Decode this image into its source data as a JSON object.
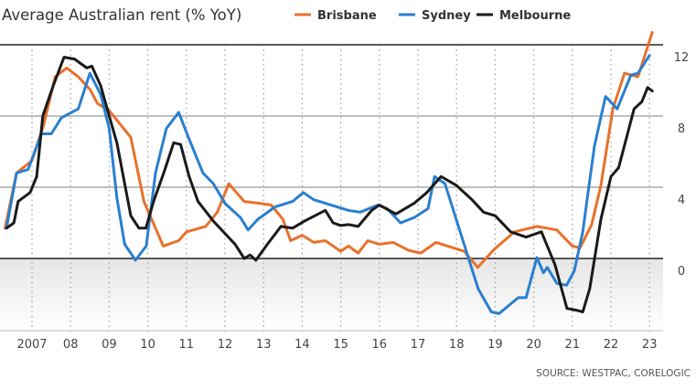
{
  "chart_data": {
    "type": "line",
    "title": "Average Australian rent (% YoY)",
    "source": "SOURCE: WESTPAC, CORELOGIC",
    "xlabel": "",
    "ylabel": "",
    "ylim": [
      -4,
      12
    ],
    "xlim": [
      2006.3,
      2023.3
    ],
    "yticks": [
      12,
      8,
      4,
      0
    ],
    "ytick_labels": [
      "12",
      "8",
      "4",
      "0"
    ],
    "xticks": [
      2007,
      2008,
      2009,
      2010,
      2011,
      2012,
      2013,
      2014,
      2015,
      2016,
      2017,
      2018,
      2019,
      2020,
      2021,
      2022,
      2023
    ],
    "xtick_labels": [
      "2007",
      "08",
      "09",
      "10",
      "11",
      "12",
      "13",
      "14",
      "15",
      "16",
      "17",
      "18",
      "19",
      "20",
      "21",
      "22",
      "23"
    ],
    "grid": "horizontal solid, vertical dotted",
    "shaded_below_zero": true,
    "legend_position": "top",
    "series": [
      {
        "name": "Brisbane",
        "color": "#e8712b",
        "x": [
          2006.3,
          2006.6,
          2007.0,
          2007.3,
          2007.6,
          2007.9,
          2008.2,
          2008.5,
          2008.7,
          2009.0,
          2009.3,
          2009.56,
          2009.9,
          2010.4,
          2010.8,
          2011.0,
          2011.5,
          2011.8,
          2012.1,
          2012.5,
          2012.9,
          2013.2,
          2013.5,
          2013.7,
          2014.0,
          2014.3,
          2014.6,
          2015.0,
          2015.2,
          2015.45,
          2015.7,
          2016.0,
          2016.36,
          2016.76,
          2017.07,
          2017.47,
          2018.2,
          2018.55,
          2018.97,
          2019.5,
          2020.08,
          2020.6,
          2021.0,
          2021.2,
          2021.5,
          2021.74,
          2022.05,
          2022.35,
          2022.7,
          2023.07
        ],
        "values": [
          1.7,
          4.8,
          5.5,
          7.5,
          10.2,
          10.7,
          10.2,
          9.5,
          8.7,
          8.3,
          7.5,
          6.8,
          3.2,
          0.7,
          1.0,
          1.5,
          1.8,
          2.6,
          4.2,
          3.2,
          3.1,
          3.0,
          2.2,
          1.0,
          1.3,
          0.9,
          1.0,
          0.4,
          0.7,
          0.3,
          1.0,
          0.8,
          0.9,
          0.45,
          0.3,
          0.9,
          0.4,
          -0.5,
          0.5,
          1.5,
          1.8,
          1.6,
          0.7,
          0.6,
          1.9,
          4.1,
          8.4,
          10.4,
          10.2,
          12.7
        ]
      },
      {
        "name": "Sydney",
        "color": "#2a7fcf",
        "x": [
          2006.34,
          2006.6,
          2006.9,
          2007.24,
          2007.5,
          2007.76,
          2008.2,
          2008.5,
          2008.78,
          2009.0,
          2009.2,
          2009.4,
          2009.68,
          2009.96,
          2010.2,
          2010.48,
          2010.8,
          2011.07,
          2011.43,
          2011.7,
          2012.0,
          2012.4,
          2012.6,
          2012.85,
          2013.3,
          2013.75,
          2014.03,
          2014.3,
          2015.2,
          2015.5,
          2015.96,
          2016.2,
          2016.55,
          2016.9,
          2017.26,
          2017.43,
          2017.7,
          2018.56,
          2018.9,
          2019.1,
          2019.6,
          2019.8,
          2020.08,
          2020.25,
          2020.35,
          2020.6,
          2020.85,
          2021.05,
          2021.27,
          2021.4,
          2021.57,
          2021.86,
          2022.16,
          2022.52,
          2022.7,
          2023.0
        ],
        "values": [
          1.7,
          4.8,
          5.0,
          7.0,
          7.0,
          7.9,
          8.4,
          10.4,
          9.2,
          7.3,
          3.4,
          0.8,
          -0.1,
          0.7,
          4.8,
          7.3,
          8.2,
          6.7,
          4.8,
          4.2,
          3.1,
          2.3,
          1.6,
          2.2,
          2.9,
          3.2,
          3.7,
          3.3,
          2.7,
          2.6,
          3.0,
          2.8,
          2.0,
          2.3,
          2.8,
          4.6,
          4.2,
          -1.7,
          -3.0,
          -3.1,
          -2.2,
          -2.2,
          0.05,
          -0.8,
          -0.5,
          -1.4,
          -1.5,
          -0.7,
          1.5,
          3.6,
          6.3,
          9.1,
          8.4,
          10.3,
          10.4,
          11.4
        ]
      },
      {
        "name": "Melbourne",
        "color": "#1a1a1a",
        "x": [
          2006.34,
          2006.53,
          2006.64,
          2006.95,
          2007.12,
          2007.28,
          2007.55,
          2007.83,
          2008.1,
          2008.42,
          2008.55,
          2008.78,
          2009.0,
          2009.2,
          2009.56,
          2009.77,
          2009.95,
          2010.15,
          2010.43,
          2010.67,
          2010.85,
          2011.07,
          2011.3,
          2011.7,
          2012.26,
          2012.5,
          2012.65,
          2012.8,
          2013.1,
          2013.45,
          2013.75,
          2014.06,
          2014.6,
          2014.8,
          2015.0,
          2015.2,
          2015.45,
          2015.8,
          2016.0,
          2016.43,
          2016.9,
          2017.23,
          2017.6,
          2018.0,
          2018.4,
          2018.7,
          2019.0,
          2019.4,
          2019.8,
          2020.2,
          2020.55,
          2020.86,
          2021.1,
          2021.27,
          2021.45,
          2021.74,
          2022.0,
          2022.2,
          2022.6,
          2022.8,
          2022.95,
          2023.07
        ],
        "values": [
          1.7,
          2.0,
          3.2,
          3.7,
          4.6,
          8.0,
          9.7,
          11.3,
          11.2,
          10.7,
          10.8,
          9.7,
          8.0,
          6.5,
          2.4,
          1.7,
          1.7,
          3.2,
          4.9,
          6.5,
          6.4,
          4.6,
          3.2,
          2.1,
          0.8,
          0.0,
          0.2,
          -0.1,
          0.8,
          1.8,
          1.7,
          2.1,
          2.7,
          2.0,
          1.85,
          1.9,
          1.8,
          2.7,
          3.0,
          2.5,
          3.1,
          3.7,
          4.6,
          4.1,
          3.3,
          2.6,
          2.4,
          1.5,
          1.2,
          1.5,
          -0.35,
          -2.8,
          -2.9,
          -3.0,
          -1.7,
          2.2,
          4.6,
          5.1,
          8.4,
          8.8,
          9.6,
          9.4
        ]
      }
    ]
  }
}
